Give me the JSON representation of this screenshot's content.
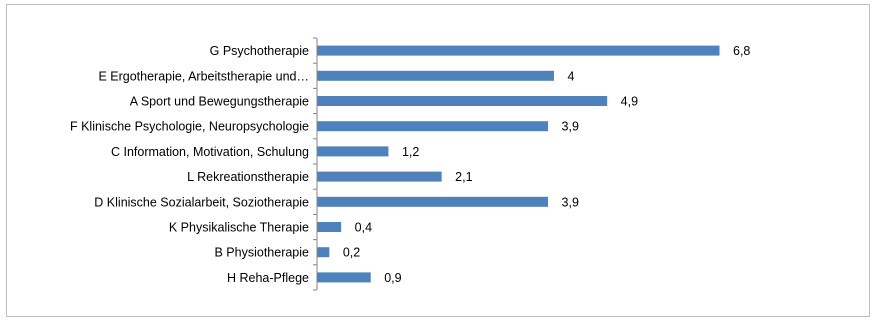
{
  "chart_data": {
    "type": "bar",
    "orientation": "horizontal",
    "title": "",
    "xlabel": "",
    "ylabel": "",
    "categories": [
      "G Psychotherapie",
      "E Ergotherapie, Arbeitstherapie und…",
      "A Sport und Bewegungstherapie",
      "F Klinische Psychologie, Neuropsychologie",
      "C Information, Motivation, Schulung",
      "L Rekreationstherapie",
      "D Klinische Sozialarbeit, Soziotherapie",
      "K Physikalische Therapie",
      "B Physiotherapie",
      "H Reha-Pflege"
    ],
    "values": [
      6.8,
      4,
      4.9,
      3.9,
      1.2,
      2.1,
      3.9,
      0.4,
      0.2,
      0.9
    ],
    "value_labels": [
      "6,8",
      "4",
      "4,9",
      "3,9",
      "1,2",
      "2,1",
      "3,9",
      "0,4",
      "0,2",
      "0,9"
    ],
    "xlim": [
      0,
      7
    ],
    "grid": false,
    "legend": "none",
    "bar_color": "#4f81bd",
    "axis_color": "#868686"
  }
}
